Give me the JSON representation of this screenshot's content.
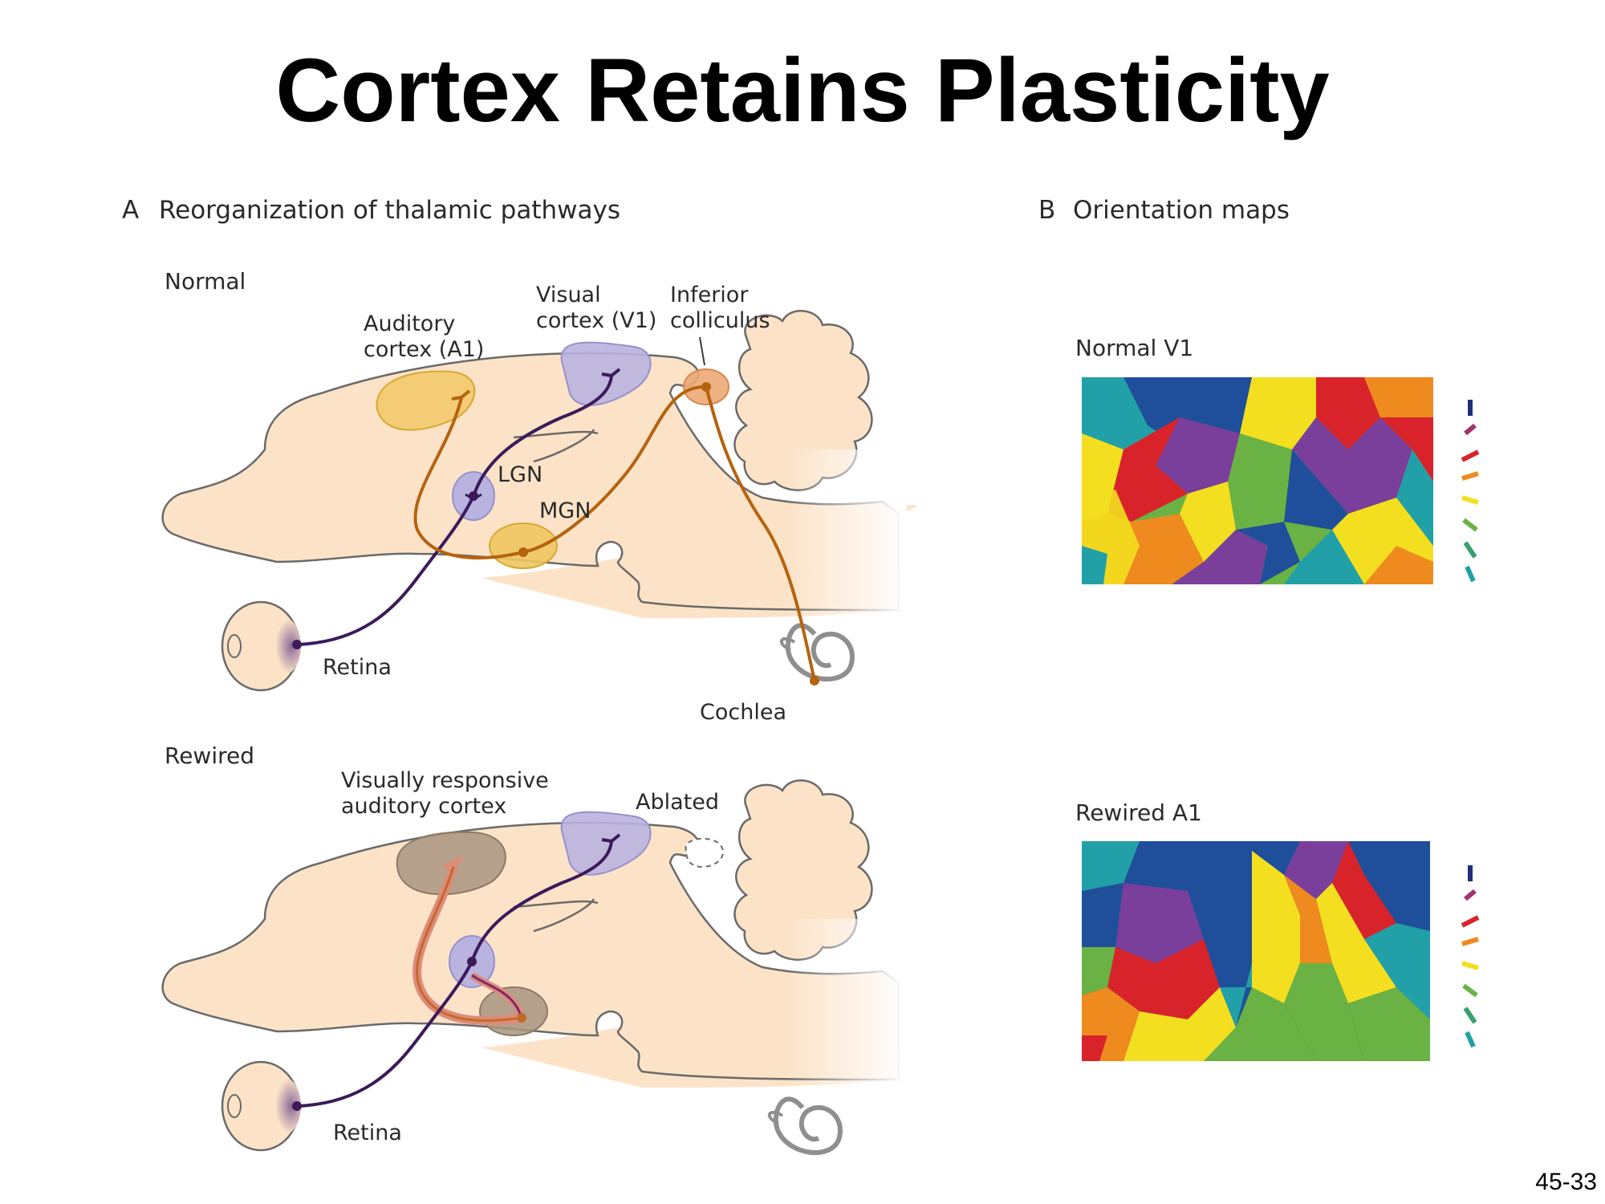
{
  "title": "Cortex Retains Plasticity",
  "slide_number": "45-33",
  "panel_a": {
    "heading": "Reorganization of thalamic pathways",
    "letter": "A",
    "normal": {
      "label": "Normal",
      "auditory_cortex": [
        "Auditory",
        "cortex (A1)"
      ],
      "visual_cortex": [
        "Visual",
        "cortex (V1)"
      ],
      "inferior_colliculus": [
        "Inferior",
        "colliculus"
      ],
      "lgn": "LGN",
      "mgn": "MGN",
      "retina": "Retina",
      "cochlea": "Cochlea"
    },
    "rewired": {
      "label": "Rewired",
      "visually_responsive": [
        "Visually responsive",
        "auditory cortex"
      ],
      "ablated": "Ablated",
      "retina": "Retina"
    }
  },
  "panel_b": {
    "heading": "Orientation maps",
    "letter": "B",
    "normal_map": "Normal V1",
    "rewired_map": "Rewired A1"
  },
  "colors": {
    "brain_fill": "#fce3c8",
    "outline": "#6a6a6a",
    "visual_pathway": "#3c1a5a",
    "auditory_pathway": "#b5630f",
    "rewired_pathway": "#e08a7a",
    "visual_area": "#b9b3df",
    "auditory_area": "#f0c560",
    "rewired_area": "#a89580"
  },
  "orientation_key_colors": [
    "#1f2f7a",
    "#a0346e",
    "#d9232a",
    "#ef8a1f",
    "#f3df1f",
    "#6ab244",
    "#22a0a8"
  ]
}
